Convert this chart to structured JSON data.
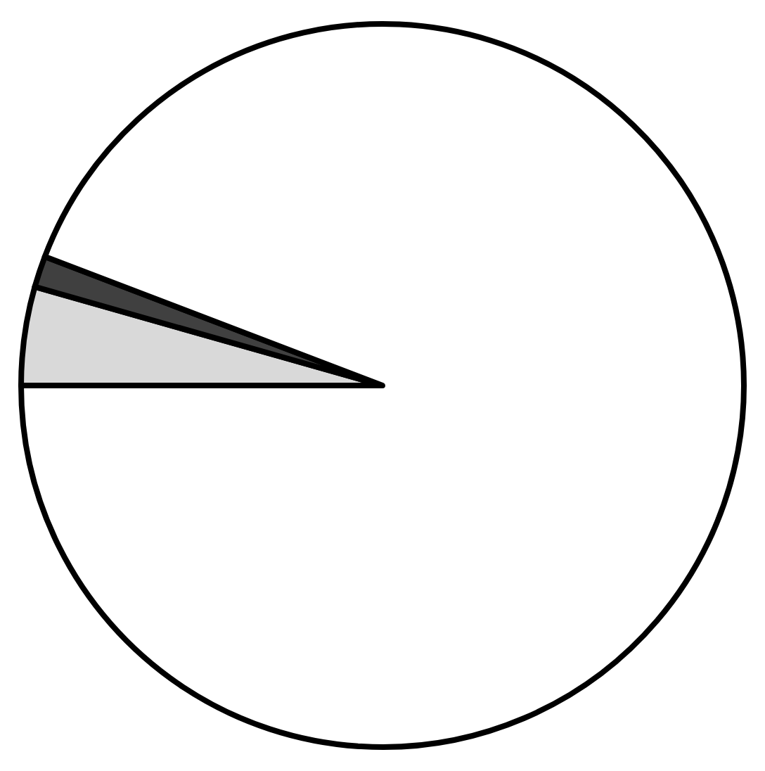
{
  "chart_data": {
    "type": "pie",
    "categories": [
      null,
      null,
      null
    ],
    "values": [
      4.4,
      1.4,
      94.2
    ],
    "colors": [
      "#d9d9d9",
      "#404040",
      "#ffffff"
    ],
    "legend": false
  }
}
